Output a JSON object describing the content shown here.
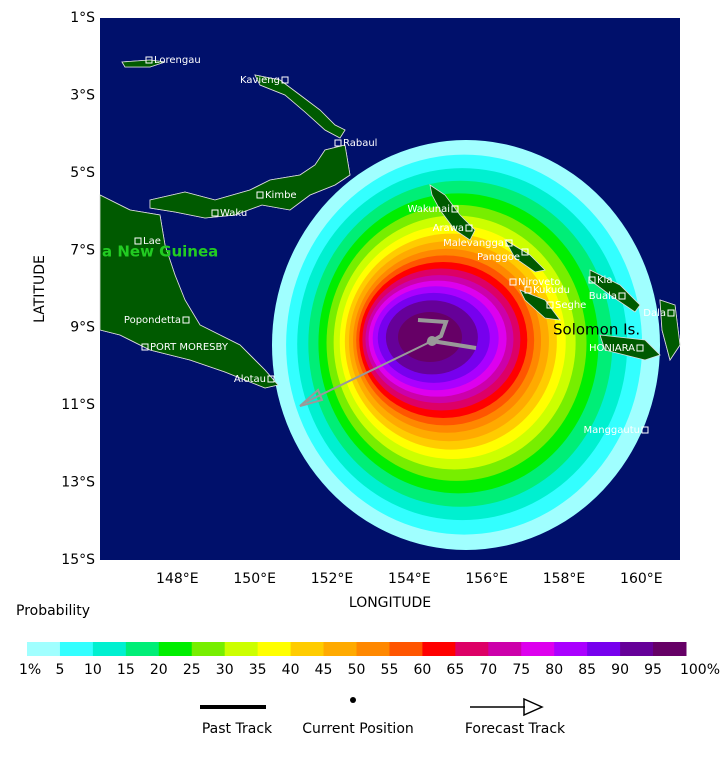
{
  "map": {
    "lon_range": [
      146,
      161
    ],
    "lat_range": [
      -15,
      -1
    ],
    "lat_ticks": [
      {
        "value": -1,
        "label": "1°S"
      },
      {
        "value": -3,
        "label": "3°S"
      },
      {
        "value": -5,
        "label": "5°S"
      },
      {
        "value": -7,
        "label": "7°S"
      },
      {
        "value": -9,
        "label": "9°S"
      },
      {
        "value": -11,
        "label": "11°S"
      },
      {
        "value": -13,
        "label": "13°S"
      },
      {
        "value": -15,
        "label": "15°S"
      }
    ],
    "lon_ticks": [
      {
        "value": 148,
        "label": "148°E"
      },
      {
        "value": 150,
        "label": "150°E"
      },
      {
        "value": 152,
        "label": "152°E"
      },
      {
        "value": 154,
        "label": "154°E"
      },
      {
        "value": 156,
        "label": "156°E"
      },
      {
        "value": 158,
        "label": "158°E"
      },
      {
        "value": 160,
        "label": "160°E"
      }
    ],
    "x_label": "LONGITUDE",
    "y_label": "LATITUDE",
    "region_labels": [
      "a New Guinea",
      "Solomon Is."
    ],
    "places": [
      "Lorengau",
      "Kavieng",
      "Rabaul",
      "Kimbe",
      "Waku",
      "Lae",
      "Popondetta",
      "PORT MORESBY",
      "Alotau",
      "Wakunai",
      "Arawa",
      "Malevangga",
      "Panggoe",
      "Njroveto",
      "Kukudu",
      "Seghe",
      "Kia",
      "Buala",
      "Dala",
      "HONIARA",
      "Manggautu"
    ]
  },
  "legend": {
    "title": "Probability",
    "labels": [
      "1%",
      "5",
      "10",
      "15",
      "20",
      "25",
      "30",
      "35",
      "40",
      "45",
      "50",
      "55",
      "60",
      "65",
      "70",
      "75",
      "80",
      "85",
      "90",
      "95",
      "100%"
    ],
    "colors": [
      "#a0ffff",
      "#33ffff",
      "#00f0d0",
      "#00ee77",
      "#00ee00",
      "#77ee00",
      "#ccff00",
      "#ffff00",
      "#ffcc00",
      "#ffaa00",
      "#ff8800",
      "#ff5500",
      "#ff0000",
      "#dd0066",
      "#cc00aa",
      "#dd00ee",
      "#aa00ff",
      "#7700ee",
      "#660099",
      "#660066"
    ],
    "track_keys": [
      "Past Track",
      "Current Position",
      "Forecast Track"
    ]
  }
}
